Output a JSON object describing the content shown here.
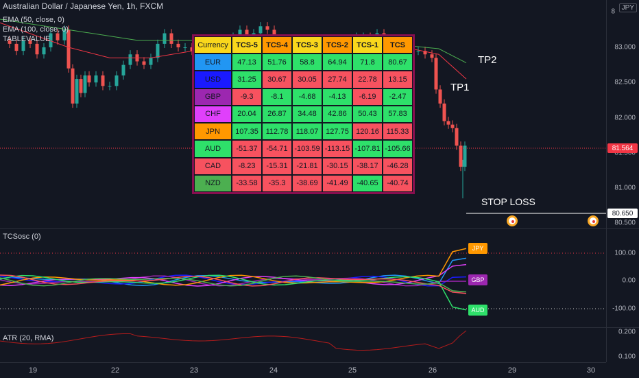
{
  "chart": {
    "title": "Australian Dollar / Japanese Yen, 1h, FXCM",
    "currency_badge": "JPY",
    "legend_lines": [
      "EMA (50, close, 0)",
      "EMA (100, close, 0)",
      "TABLEVALUE"
    ],
    "price_axis": [
      "83.000",
      "82.500",
      "82.000",
      "81.500",
      "81.000",
      "80.500"
    ],
    "current_price": "81.564",
    "stop_price": "80.650",
    "top_partial_tick": "8",
    "annotations": {
      "tp2": "TP2",
      "tp1": "TP1",
      "stop_loss": "STOP LOSS"
    },
    "colors": {
      "up": "#26a69a",
      "down": "#ef5350",
      "ema50": "#4caf50",
      "ema100": "#f23645",
      "table_border": "#880e4f",
      "positive_cell": "#2ee06a",
      "negative_cell": "#f7525f"
    }
  },
  "table": {
    "header_currency": "Currency",
    "header_overlay": "TABLE",
    "columns": [
      "TCS-5",
      "TCS-4",
      "TCS-3",
      "TCS-2",
      "TCS-1",
      "TCS"
    ],
    "rows": [
      {
        "currency": "EUR",
        "color": "#2196f3",
        "values": [
          "47.13",
          "51.76",
          "58.8",
          "64.94",
          "71.8",
          "80.67"
        ]
      },
      {
        "currency": "USD",
        "color": "#1a1aff",
        "values": [
          "31.25",
          "30.67",
          "30.05",
          "27.74",
          "22.78",
          "13.15"
        ]
      },
      {
        "currency": "GBP",
        "color": "#9c27b0",
        "values": [
          "-9.3",
          "-8.1",
          "-4.68",
          "-4.13",
          "-6.19",
          "-2.47"
        ]
      },
      {
        "currency": "CHF",
        "color": "#e040fb",
        "values": [
          "20.04",
          "26.87",
          "34.48",
          "42.86",
          "50.43",
          "57.83"
        ]
      },
      {
        "currency": "JPN",
        "color": "#ff9800",
        "values": [
          "107.35",
          "112.78",
          "118.07",
          "127.75",
          "120.16",
          "115.33"
        ]
      },
      {
        "currency": "AUD",
        "color": "#2ee06a",
        "values": [
          "-51.37",
          "-54.71",
          "-103.59",
          "-113.15",
          "-107.81",
          "-105.66"
        ]
      },
      {
        "currency": "CAD",
        "color": "#f7525f",
        "values": [
          "-8.23",
          "-15.31",
          "-21.81",
          "-30.15",
          "-38.17",
          "-46.28"
        ]
      },
      {
        "currency": "NZD",
        "color": "#4caf50",
        "values": [
          "-33.58",
          "-35.3",
          "-38.69",
          "-41.49",
          "-40.65",
          "-40.74"
        ]
      }
    ]
  },
  "oscillator": {
    "title": "TCSosc (0)",
    "axis": [
      "100.00",
      "0.00",
      "-100.00"
    ],
    "badges": [
      "JPY",
      "GBP",
      "AUD"
    ],
    "badge_colors": {
      "JPY": "#ff9800",
      "GBP": "#9c27b0",
      "AUD": "#2ee06a"
    }
  },
  "atr": {
    "title": "ATR (20, RMA)",
    "axis": [
      "0.200",
      "0.100"
    ],
    "line_color": "#b71c1c"
  },
  "time_axis": [
    "19",
    "22",
    "23",
    "24",
    "25",
    "26",
    "29",
    "30"
  ]
}
